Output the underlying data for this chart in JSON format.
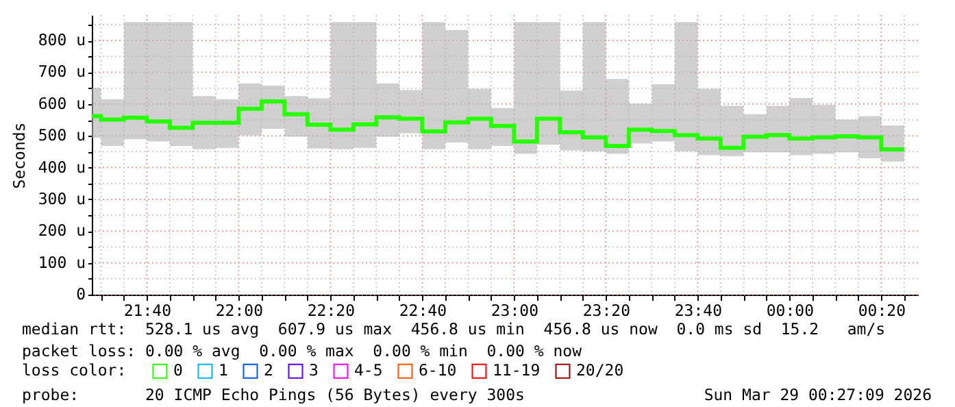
{
  "chart_data": {
    "type": "step",
    "ylabel": "Seconds",
    "x": [
      "2026-03-28T21:30",
      "2026-03-28T21:35",
      "2026-03-28T21:40",
      "2026-03-28T21:45",
      "2026-03-28T21:50",
      "2026-03-28T21:55",
      "2026-03-28T22:00",
      "2026-03-28T22:05",
      "2026-03-28T22:10",
      "2026-03-28T22:15",
      "2026-03-28T22:20",
      "2026-03-28T22:25",
      "2026-03-28T22:30",
      "2026-03-28T22:35",
      "2026-03-28T22:40",
      "2026-03-28T22:45",
      "2026-03-28T22:50",
      "2026-03-28T22:55",
      "2026-03-28T23:00",
      "2026-03-28T23:05",
      "2026-03-28T23:10",
      "2026-03-28T23:15",
      "2026-03-28T23:20",
      "2026-03-28T23:25",
      "2026-03-28T23:30",
      "2026-03-28T23:35",
      "2026-03-28T23:40",
      "2026-03-28T23:45",
      "2026-03-28T23:50",
      "2026-03-28T23:55",
      "2026-03-29T00:00",
      "2026-03-29T00:05",
      "2026-03-29T00:10",
      "2026-03-29T00:15",
      "2026-03-29T00:20",
      "2026-03-29T00:25"
    ],
    "series": [
      {
        "name": "0",
        "color": "#26ff00",
        "values": [
          562,
          551,
          557,
          545,
          525,
          541,
          541,
          585,
          608,
          568,
          535,
          519,
          536,
          558,
          554,
          514,
          542,
          554,
          531,
          482,
          554,
          511,
          495,
          468,
          519,
          515,
          502,
          491,
          462,
          497,
          502,
          491,
          495,
          498,
          495,
          457
        ],
        "lower": [
          494,
          468,
          489,
          482,
          468,
          458,
          462,
          501,
          522,
          497,
          460,
          458,
          462,
          497,
          508,
          458,
          479,
          458,
          468,
          443,
          472,
          454,
          451,
          443,
          476,
          482,
          451,
          439,
          436,
          448,
          448,
          439,
          443,
          448,
          429,
          419
        ],
        "upper": [
          651,
          615,
          858,
          858,
          858,
          625,
          615,
          665,
          658,
          625,
          618,
          858,
          858,
          665,
          644,
          858,
          833,
          648,
          587,
          858,
          858,
          642,
          858,
          679,
          601,
          662,
          858,
          648,
          594,
          568,
          594,
          619,
          597,
          551,
          562,
          533
        ]
      },
      {
        "name": "1",
        "color": "#00b8ff",
        "values": [
          null,
          null,
          null,
          null,
          null,
          null,
          null,
          null,
          null,
          null,
          null,
          null,
          null,
          null,
          null,
          null,
          null,
          null,
          null,
          null,
          null,
          null,
          null,
          null,
          null,
          null,
          null,
          null,
          null,
          null,
          null,
          null,
          null,
          null,
          null,
          null
        ]
      },
      {
        "name": "2",
        "color": "#0059ff",
        "values": [
          null,
          null,
          null,
          null,
          null,
          null,
          null,
          null,
          null,
          null,
          null,
          null,
          null,
          null,
          null,
          null,
          null,
          null,
          null,
          null,
          null,
          null,
          null,
          null,
          null,
          null,
          null,
          null,
          null,
          null,
          null,
          null,
          null,
          null,
          null,
          null
        ]
      },
      {
        "name": "3",
        "color": "#5e00ff",
        "values": [
          null,
          null,
          null,
          null,
          null,
          null,
          null,
          null,
          null,
          null,
          null,
          null,
          null,
          null,
          null,
          null,
          null,
          null,
          null,
          null,
          null,
          null,
          null,
          null,
          null,
          null,
          null,
          null,
          null,
          null,
          null,
          null,
          null,
          null,
          null,
          null
        ]
      },
      {
        "name": "4-5",
        "color": "#ff00ff",
        "values": [
          null,
          null,
          null,
          null,
          null,
          null,
          null,
          null,
          null,
          null,
          null,
          null,
          null,
          null,
          null,
          null,
          null,
          null,
          null,
          null,
          null,
          null,
          null,
          null,
          null,
          null,
          null,
          null,
          null,
          null,
          null,
          null,
          null,
          null,
          null,
          null
        ]
      },
      {
        "name": "6-10",
        "color": "#ff5500",
        "values": [
          null,
          null,
          null,
          null,
          null,
          null,
          null,
          null,
          null,
          null,
          null,
          null,
          null,
          null,
          null,
          null,
          null,
          null,
          null,
          null,
          null,
          null,
          null,
          null,
          null,
          null,
          null,
          null,
          null,
          null,
          null,
          null,
          null,
          null,
          null,
          null
        ]
      },
      {
        "name": "11-19",
        "color": "#ff0000",
        "values": [
          null,
          null,
          null,
          null,
          null,
          null,
          null,
          null,
          null,
          null,
          null,
          null,
          null,
          null,
          null,
          null,
          null,
          null,
          null,
          null,
          null,
          null,
          null,
          null,
          null,
          null,
          null,
          null,
          null,
          null,
          null,
          null,
          null,
          null,
          null,
          null
        ]
      },
      {
        "name": "20/20",
        "color": "#a10000",
        "values": [
          null,
          null,
          null,
          null,
          null,
          null,
          null,
          null,
          null,
          null,
          null,
          null,
          null,
          null,
          null,
          null,
          null,
          null,
          null,
          null,
          null,
          null,
          null,
          null,
          null,
          null,
          null,
          null,
          null,
          null,
          null,
          null,
          null,
          null,
          null,
          null
        ]
      }
    ],
    "legend_title": "loss color:",
    "legend": "bottom",
    "xlim": [
      "2026-03-28T21:28",
      "2026-03-29T00:28"
    ],
    "xticks": [
      {
        "value": "2026-03-28T21:30",
        "label": null
      },
      {
        "value": "2026-03-28T21:35",
        "label": null
      },
      {
        "value": "2026-03-28T21:40",
        "label": "21:40"
      },
      {
        "value": "2026-03-28T21:45",
        "label": null
      },
      {
        "value": "2026-03-28T21:50",
        "label": null
      },
      {
        "value": "2026-03-28T21:55",
        "label": null
      },
      {
        "value": "2026-03-28T22:00",
        "label": "22:00"
      },
      {
        "value": "2026-03-28T22:05",
        "label": null
      },
      {
        "value": "2026-03-28T22:10",
        "label": null
      },
      {
        "value": "2026-03-28T22:15",
        "label": null
      },
      {
        "value": "2026-03-28T22:20",
        "label": "22:20"
      },
      {
        "value": "2026-03-28T22:25",
        "label": null
      },
      {
        "value": "2026-03-28T22:30",
        "label": null
      },
      {
        "value": "2026-03-28T22:35",
        "label": null
      },
      {
        "value": "2026-03-28T22:40",
        "label": "22:40"
      },
      {
        "value": "2026-03-28T22:45",
        "label": null
      },
      {
        "value": "2026-03-28T22:50",
        "label": null
      },
      {
        "value": "2026-03-28T22:55",
        "label": null
      },
      {
        "value": "2026-03-28T23:00",
        "label": "23:00"
      },
      {
        "value": "2026-03-28T23:05",
        "label": null
      },
      {
        "value": "2026-03-28T23:10",
        "label": null
      },
      {
        "value": "2026-03-28T23:15",
        "label": null
      },
      {
        "value": "2026-03-28T23:20",
        "label": "23:20"
      },
      {
        "value": "2026-03-28T23:25",
        "label": null
      },
      {
        "value": "2026-03-28T23:30",
        "label": null
      },
      {
        "value": "2026-03-28T23:35",
        "label": null
      },
      {
        "value": "2026-03-28T23:40",
        "label": "23:40"
      },
      {
        "value": "2026-03-28T23:45",
        "label": null
      },
      {
        "value": "2026-03-28T23:50",
        "label": null
      },
      {
        "value": "2026-03-28T23:55",
        "label": null
      },
      {
        "value": "2026-03-29T00:00",
        "label": "00:00"
      },
      {
        "value": "2026-03-29T00:05",
        "label": null
      },
      {
        "value": "2026-03-29T00:10",
        "label": null
      },
      {
        "value": "2026-03-29T00:15",
        "label": null
      },
      {
        "value": "2026-03-29T00:20",
        "label": "00:20"
      },
      {
        "value": "2026-03-29T00:25",
        "label": null
      }
    ],
    "ylim": [
      0,
      880
    ],
    "yticks": [
      0,
      {
        "value": 50,
        "label": null
      },
      {
        "value": 100,
        "label": "100 u"
      },
      {
        "value": 150,
        "label": null
      },
      {
        "value": 200,
        "label": "200 u"
      },
      {
        "value": 250,
        "label": null
      },
      {
        "value": 300,
        "label": "300 u"
      },
      {
        "value": 350,
        "label": null
      },
      {
        "value": 400,
        "label": "400 u"
      },
      {
        "value": 450,
        "label": null
      },
      {
        "value": 500,
        "label": "500 u"
      },
      {
        "value": 550,
        "label": null
      },
      {
        "value": 600,
        "label": "600 u"
      },
      {
        "value": 650,
        "label": null
      },
      {
        "value": 700,
        "label": "700 u"
      },
      {
        "value": 750,
        "label": null
      },
      {
        "value": 800,
        "label": "800 u"
      },
      {
        "value": 850,
        "label": null
      }
    ],
    "grid": true,
    "annotations": [
      "median rtt:  528.1 us avg  607.9 us max  456.8 us min  456.8 us now  0.0 ms sd  15.2   am/s",
      "packet loss: 0.00 % avg  0.00 % max  0.00 % min  0.00 % now",
      "probe:       20 ICMP Echo Pings (56 Bytes) every 300s",
      "Sun Mar 29 00:27:09 2026"
    ]
  }
}
